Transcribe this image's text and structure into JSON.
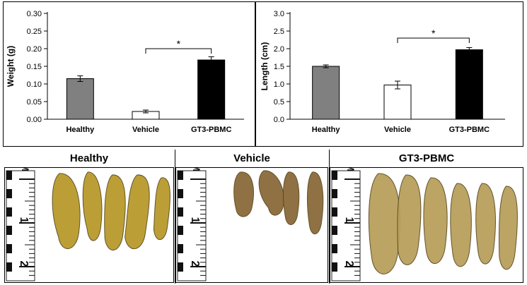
{
  "chart_data": [
    {
      "type": "bar",
      "categories": [
        "Healthy",
        "Vehicle",
        "GT3-PBMC"
      ],
      "values": [
        0.115,
        0.022,
        0.168
      ],
      "errors": [
        0.008,
        0.004,
        0.009
      ],
      "colors": [
        "#808080",
        "#ffffff",
        "#000000"
      ],
      "ylabel": "Weight (g)",
      "xlabel": "",
      "ylim": [
        0,
        0.3
      ],
      "yticks": [
        0.0,
        0.05,
        0.1,
        0.15,
        0.2,
        0.25,
        0.3
      ],
      "ytick_labels": [
        "0.00",
        "0.05",
        "0.10",
        "0.15",
        "0.20",
        "0.25",
        "0.30"
      ],
      "significance": {
        "from": 1,
        "to": 2,
        "label": "*",
        "level": 0.2
      }
    },
    {
      "type": "bar",
      "categories": [
        "Healthy",
        "Vehicle",
        "GT3-PBMC"
      ],
      "values": [
        1.5,
        0.97,
        1.97
      ],
      "errors": [
        0.04,
        0.11,
        0.06
      ],
      "colors": [
        "#808080",
        "#ffffff",
        "#000000"
      ],
      "ylabel": "Length (cm)",
      "xlabel": "",
      "ylim": [
        0,
        3.0
      ],
      "yticks": [
        0.0,
        0.5,
        1.0,
        1.5,
        2.0,
        2.5,
        3.0
      ],
      "ytick_labels": [
        "0.0",
        "0.5",
        "1.0",
        "1.5",
        "2.0",
        "2.5",
        "3.0"
      ],
      "significance": {
        "from": 1,
        "to": 2,
        "label": "*",
        "level": 2.3
      }
    }
  ],
  "panels": [
    {
      "title": "Healthy",
      "ruler_unit": "CM",
      "ruler_marks": [
        "1",
        "2"
      ],
      "specimen_color": "#b89a2c"
    },
    {
      "title": "Vehicle",
      "ruler_unit": "CM",
      "ruler_marks": [
        "1",
        "2"
      ],
      "specimen_color": "#8a6a3a"
    },
    {
      "title": "GT3-PBMC",
      "ruler_unit": "CM",
      "ruler_marks": [
        "1",
        "2"
      ],
      "specimen_color": "#b8a05c"
    }
  ]
}
